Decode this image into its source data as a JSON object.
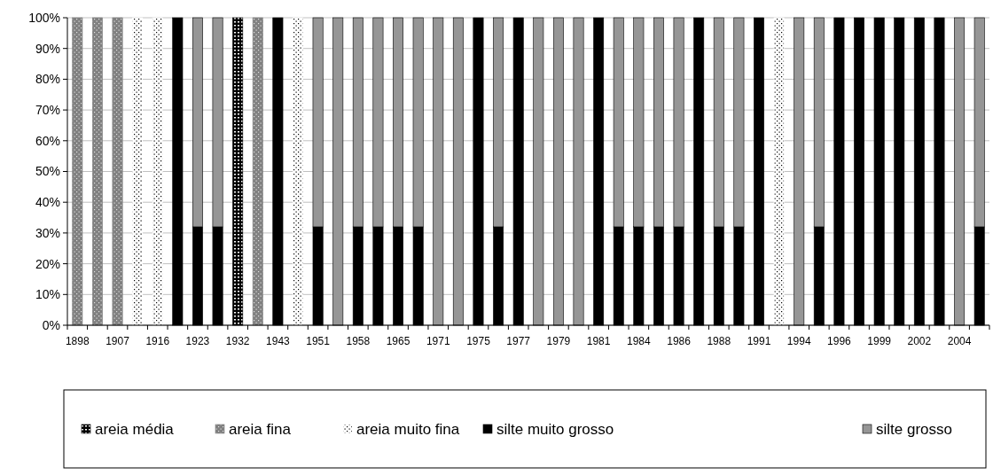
{
  "chart_data": {
    "type": "bar",
    "stacked": true,
    "categories": [
      "1898",
      null,
      "1907",
      null,
      "1916",
      null,
      "1923",
      null,
      "1932",
      null,
      "1943",
      null,
      "1951",
      null,
      "1958",
      null,
      "1965",
      null,
      "1971",
      null,
      "1975",
      null,
      "1977",
      null,
      "1979",
      null,
      "1981",
      null,
      "1984",
      null,
      "1986",
      null,
      "1988",
      null,
      "1991",
      null,
      "1994",
      null,
      "1996",
      null,
      "1999",
      null,
      "2002",
      null,
      "2004",
      null
    ],
    "series": [
      {
        "name": "areia média",
        "color": "#000000",
        "values": [
          0,
          0,
          0,
          0,
          0,
          0,
          0,
          0,
          100,
          0,
          0,
          0,
          0,
          0,
          0,
          0,
          0,
          0,
          0,
          0,
          0,
          0,
          0,
          0,
          0,
          0,
          0,
          0,
          0,
          0,
          0,
          0,
          0,
          0,
          0,
          0,
          0,
          0,
          0,
          0,
          0,
          0,
          0,
          0,
          0,
          0
        ]
      },
      {
        "name": "areia fina",
        "color": "#808080",
        "values": [
          100,
          100,
          100,
          0,
          0,
          0,
          0,
          0,
          0,
          100,
          0,
          0,
          0,
          0,
          0,
          0,
          0,
          0,
          0,
          0,
          0,
          0,
          0,
          0,
          0,
          0,
          0,
          0,
          0,
          0,
          0,
          0,
          0,
          0,
          0,
          0,
          0,
          0,
          0,
          0,
          0,
          0,
          0,
          0,
          0,
          0
        ]
      },
      {
        "name": "areia muito fina",
        "color": "#ffffff",
        "values": [
          0,
          0,
          0,
          100,
          100,
          0,
          0,
          0,
          0,
          0,
          0,
          100,
          0,
          0,
          0,
          0,
          0,
          0,
          0,
          0,
          0,
          0,
          0,
          0,
          0,
          0,
          0,
          0,
          0,
          0,
          0,
          0,
          0,
          0,
          0,
          100,
          0,
          0,
          0,
          0,
          0,
          0,
          0,
          0,
          0,
          0
        ]
      },
      {
        "name": "silte muito grosso",
        "color": "#000000",
        "values": [
          0,
          0,
          0,
          0,
          0,
          100,
          32,
          32,
          0,
          0,
          100,
          0,
          32,
          0,
          32,
          32,
          32,
          32,
          0,
          0,
          100,
          32,
          100,
          0,
          0,
          0,
          100,
          32,
          32,
          32,
          32,
          100,
          32,
          32,
          100,
          0,
          0,
          32,
          100,
          100,
          100,
          100,
          100,
          100,
          0,
          32
        ]
      },
      {
        "name": "silte grosso",
        "color": "#969696",
        "values": [
          0,
          0,
          0,
          0,
          0,
          0,
          68,
          68,
          0,
          0,
          0,
          0,
          68,
          100,
          68,
          68,
          68,
          68,
          100,
          100,
          0,
          68,
          0,
          100,
          100,
          100,
          0,
          68,
          68,
          68,
          68,
          0,
          68,
          68,
          0,
          0,
          100,
          68,
          0,
          0,
          0,
          0,
          0,
          0,
          100,
          68
        ]
      }
    ],
    "ylim": [
      0,
      100
    ],
    "yticks": [
      {
        "value": 0,
        "label": "0%"
      },
      {
        "value": 10,
        "label": "10%"
      },
      {
        "value": 20,
        "label": "20%"
      },
      {
        "value": 30,
        "label": "30%"
      },
      {
        "value": 40,
        "label": "40%"
      },
      {
        "value": 50,
        "label": "50%"
      },
      {
        "value": 60,
        "label": "60%"
      },
      {
        "value": 70,
        "label": "70%"
      },
      {
        "value": 80,
        "label": "80%"
      },
      {
        "value": 90,
        "label": "90%"
      },
      {
        "value": 100,
        "label": "100%"
      }
    ],
    "grid": "y",
    "legend": "bottom"
  }
}
